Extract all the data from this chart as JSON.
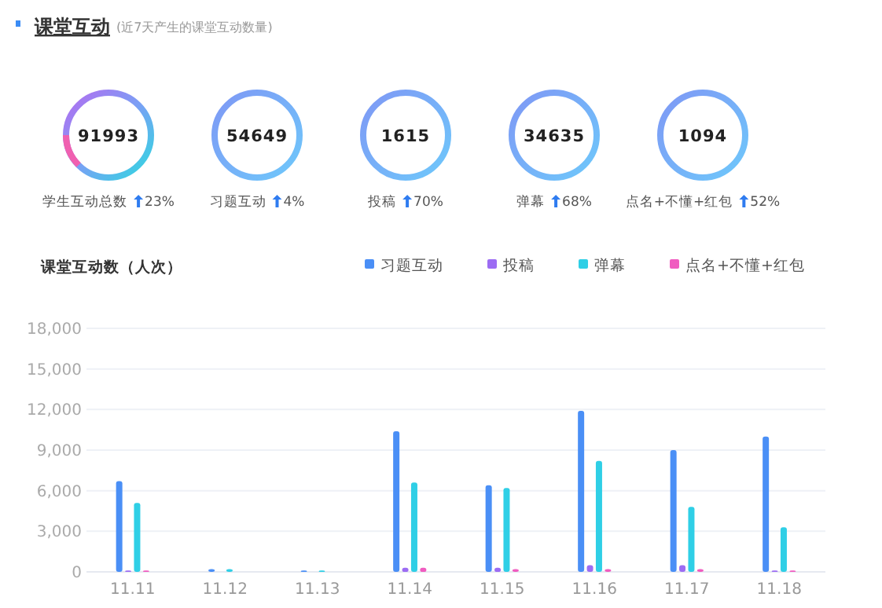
{
  "chart_data": [
    {
      "type": "other",
      "title": "课堂互动",
      "subtitle": "(近7天产生的课堂互动数量)",
      "annotations": [
        "91993",
        "学生互动总数",
        "23%",
        "54649",
        "习题互动",
        "4%",
        "1615",
        "投稿",
        "70%",
        "34635",
        "弹幕",
        "68%",
        "1094",
        "点名+不懂+红包",
        "52%"
      ]
    },
    {
      "type": "bar",
      "ylabel": "课堂互动数（人次）",
      "categories": [
        "11.11",
        "11.12",
        "11.13",
        "11.14",
        "11.15",
        "11.16",
        "11.17",
        "11.18"
      ],
      "series": [
        {
          "name": "习题互动",
          "color": "#4a8ff6",
          "values": [
            6700,
            200,
            100,
            10400,
            6400,
            11900,
            9000,
            10000
          ]
        },
        {
          "name": "投稿",
          "color": "#9c6cf3",
          "values": [
            100,
            0,
            0,
            300,
            300,
            500,
            500,
            100
          ]
        },
        {
          "name": "弹幕",
          "color": "#2fcfe6",
          "values": [
            5100,
            200,
            100,
            6600,
            6200,
            8200,
            4800,
            3300
          ]
        },
        {
          "name": "点名+不懂+红包",
          "color": "#f05cc0",
          "values": [
            100,
            0,
            0,
            300,
            200,
            200,
            200,
            100
          ]
        }
      ],
      "ylim": [
        0,
        18000
      ],
      "yticks": [
        0,
        {
          "value": 3000,
          "label": "3,000"
        },
        {
          "value": 6000,
          "label": "6,000"
        },
        {
          "value": 9000,
          "label": "9,000"
        },
        {
          "value": 12000,
          "label": "12,000"
        },
        {
          "value": 15000,
          "label": "15,000"
        },
        {
          "value": 18000,
          "label": "18,000"
        }
      ],
      "grid": "y",
      "legend": "top right"
    }
  ]
}
